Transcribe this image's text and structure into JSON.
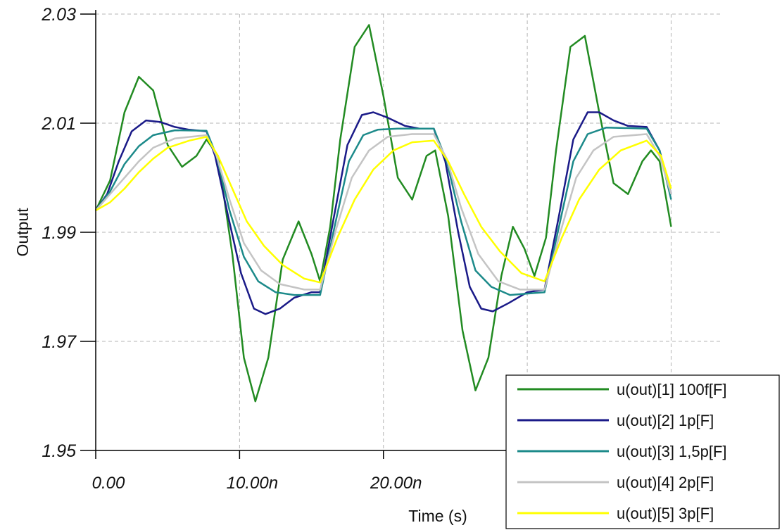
{
  "chart_data": {
    "type": "line",
    "xlabel": "Time (s)",
    "ylabel": "Output",
    "xlim": [
      0,
      43.5
    ],
    "ylim": [
      1.95,
      2.03
    ],
    "x_unit": "ns",
    "x_ticks": [
      0,
      10,
      20,
      30,
      40
    ],
    "x_tick_labels": [
      "0.00",
      "10.00n",
      "20.00n",
      "",
      ""
    ],
    "y_ticks": [
      1.95,
      1.97,
      1.99,
      2.01,
      2.03
    ],
    "y_tick_labels": [
      "1.95",
      "1.97",
      "1.99",
      "2.01",
      "2.03"
    ],
    "grid": true,
    "legend_position": "bottom-right",
    "series": [
      {
        "name": "u(out)[1]  100f[F]",
        "color": "#228B22",
        "points": [
          [
            0,
            1.994
          ],
          [
            1,
            1.9995
          ],
          [
            2,
            2.012
          ],
          [
            3,
            2.0185
          ],
          [
            4,
            2.016
          ],
          [
            5,
            2.006
          ],
          [
            6,
            2.002
          ],
          [
            7,
            2.004
          ],
          [
            7.7,
            2.007
          ],
          [
            8.5,
            2.004
          ],
          [
            9.5,
            1.986
          ],
          [
            10.3,
            1.967
          ],
          [
            11.1,
            1.959
          ],
          [
            12,
            1.967
          ],
          [
            13,
            1.985
          ],
          [
            14.1,
            1.992
          ],
          [
            15,
            1.986
          ],
          [
            15.6,
            1.981
          ],
          [
            16.3,
            1.991
          ],
          [
            17,
            2.007
          ],
          [
            18,
            2.024
          ],
          [
            19,
            2.028
          ],
          [
            20,
            2.015
          ],
          [
            21,
            2.0
          ],
          [
            22,
            1.996
          ],
          [
            23,
            2.004
          ],
          [
            23.6,
            2.005
          ],
          [
            24.5,
            1.993
          ],
          [
            25.5,
            1.972
          ],
          [
            26.4,
            1.961
          ],
          [
            27.3,
            1.967
          ],
          [
            28.2,
            1.982
          ],
          [
            29,
            1.991
          ],
          [
            29.8,
            1.987
          ],
          [
            30.5,
            1.982
          ],
          [
            31.3,
            1.989
          ],
          [
            32,
            2.005
          ],
          [
            33,
            2.024
          ],
          [
            34,
            2.026
          ],
          [
            35,
            2.012
          ],
          [
            36,
            1.999
          ],
          [
            37,
            1.997
          ],
          [
            38,
            2.003
          ],
          [
            38.6,
            2.005
          ],
          [
            39.2,
            2.003
          ],
          [
            40,
            1.991
          ]
        ]
      },
      {
        "name": "u(out)[2]  1p[F]",
        "color": "#1a1a88",
        "points": [
          [
            0,
            1.994
          ],
          [
            0.8,
            1.997
          ],
          [
            1.6,
            2.003
          ],
          [
            2.5,
            2.0085
          ],
          [
            3.5,
            2.0105
          ],
          [
            4.5,
            2.0102
          ],
          [
            5.5,
            2.0093
          ],
          [
            6.5,
            2.0088
          ],
          [
            7.7,
            2.0085
          ],
          [
            8.3,
            2.004
          ],
          [
            9.2,
            1.993
          ],
          [
            10.1,
            1.9825
          ],
          [
            11,
            1.976
          ],
          [
            11.8,
            1.975
          ],
          [
            12.8,
            1.976
          ],
          [
            13.8,
            1.978
          ],
          [
            15,
            1.979
          ],
          [
            15.6,
            1.979
          ],
          [
            16.5,
            1.992
          ],
          [
            17.5,
            2.006
          ],
          [
            18.5,
            2.0115
          ],
          [
            19.3,
            2.012
          ],
          [
            20.3,
            2.011
          ],
          [
            21.5,
            2.0095
          ],
          [
            22.5,
            2.009
          ],
          [
            23.5,
            2.009
          ],
          [
            24.3,
            2.003
          ],
          [
            25.2,
            1.99
          ],
          [
            26,
            1.98
          ],
          [
            26.8,
            1.976
          ],
          [
            27.6,
            1.9755
          ],
          [
            28.7,
            1.977
          ],
          [
            30,
            1.979
          ],
          [
            31.2,
            1.9795
          ],
          [
            32.2,
            1.993
          ],
          [
            33.2,
            2.007
          ],
          [
            34.2,
            2.012
          ],
          [
            35,
            2.012
          ],
          [
            36,
            2.0105
          ],
          [
            37,
            2.0095
          ],
          [
            38.3,
            2.0093
          ],
          [
            39.2,
            2.005
          ],
          [
            40,
            1.997
          ]
        ]
      },
      {
        "name": "u(out)[3]  1,5p[F]",
        "color": "#1c8a8a",
        "points": [
          [
            0,
            1.994
          ],
          [
            1,
            1.9975
          ],
          [
            2,
            2.0025
          ],
          [
            3,
            2.0058
          ],
          [
            4,
            2.0078
          ],
          [
            5.5,
            2.0087
          ],
          [
            7.7,
            2.0086
          ],
          [
            8.4,
            2.004
          ],
          [
            9.3,
            1.994
          ],
          [
            10.3,
            1.9855
          ],
          [
            11.3,
            1.981
          ],
          [
            12.5,
            1.979
          ],
          [
            13.8,
            1.9785
          ],
          [
            15.6,
            1.9785
          ],
          [
            16.6,
            1.991
          ],
          [
            17.6,
            2.003
          ],
          [
            18.6,
            2.0078
          ],
          [
            19.6,
            2.0088
          ],
          [
            21,
            2.009
          ],
          [
            23.5,
            2.009
          ],
          [
            24.4,
            2.003
          ],
          [
            25.4,
            1.992
          ],
          [
            26.4,
            1.983
          ],
          [
            27.5,
            1.98
          ],
          [
            28.8,
            1.9785
          ],
          [
            31.2,
            1.979
          ],
          [
            32.2,
            1.991
          ],
          [
            33.2,
            2.003
          ],
          [
            34.2,
            2.008
          ],
          [
            35.5,
            2.0092
          ],
          [
            38.3,
            2.009
          ],
          [
            39.2,
            2.005
          ],
          [
            40,
            1.996
          ]
        ]
      },
      {
        "name": "u(out)[4]  2p[F]",
        "color": "#c4c4c4",
        "points": [
          [
            0,
            1.994
          ],
          [
            1,
            1.997
          ],
          [
            2,
            2.0
          ],
          [
            3,
            2.003
          ],
          [
            4,
            2.0055
          ],
          [
            5.5,
            2.0072
          ],
          [
            7.7,
            2.0078
          ],
          [
            8.4,
            2.004
          ],
          [
            9.3,
            1.996
          ],
          [
            10.3,
            1.988
          ],
          [
            11.5,
            1.983
          ],
          [
            12.8,
            1.9805
          ],
          [
            14.5,
            1.9795
          ],
          [
            15.6,
            1.9795
          ],
          [
            16.7,
            1.9905
          ],
          [
            17.8,
            2.0
          ],
          [
            19,
            2.005
          ],
          [
            20.3,
            2.0075
          ],
          [
            22,
            2.008
          ],
          [
            23.5,
            2.008
          ],
          [
            24.4,
            2.0035
          ],
          [
            25.4,
            1.9945
          ],
          [
            26.6,
            1.986
          ],
          [
            28,
            1.981
          ],
          [
            29.5,
            1.9795
          ],
          [
            31.2,
            1.9795
          ],
          [
            32.3,
            1.99
          ],
          [
            33.4,
            2.0
          ],
          [
            34.6,
            2.005
          ],
          [
            36,
            2.0075
          ],
          [
            38.3,
            2.008
          ],
          [
            39.2,
            2.004
          ],
          [
            40,
            1.997
          ]
        ]
      },
      {
        "name": "u(out)[5]  3p[F]",
        "color": "#ffff00",
        "points": [
          [
            0,
            1.994
          ],
          [
            1,
            1.9955
          ],
          [
            2,
            1.998
          ],
          [
            3,
            2.001
          ],
          [
            4,
            2.0035
          ],
          [
            5,
            2.0055
          ],
          [
            6.5,
            2.0068
          ],
          [
            7.7,
            2.0075
          ],
          [
            8.5,
            2.004
          ],
          [
            9.5,
            1.998
          ],
          [
            10.5,
            1.992
          ],
          [
            11.7,
            1.9875
          ],
          [
            13,
            1.984
          ],
          [
            14.5,
            1.9815
          ],
          [
            15.6,
            1.9808
          ],
          [
            16.8,
            1.989
          ],
          [
            18,
            1.996
          ],
          [
            19.3,
            2.0015
          ],
          [
            20.7,
            2.005
          ],
          [
            22,
            2.0065
          ],
          [
            23.5,
            2.0068
          ],
          [
            24.5,
            2.003
          ],
          [
            25.6,
            1.997
          ],
          [
            26.8,
            1.991
          ],
          [
            28.1,
            1.9865
          ],
          [
            29.6,
            1.9825
          ],
          [
            31.2,
            1.981
          ],
          [
            32.4,
            1.989
          ],
          [
            33.6,
            1.996
          ],
          [
            35,
            2.0015
          ],
          [
            36.5,
            2.005
          ],
          [
            38.3,
            2.0068
          ],
          [
            39.3,
            2.004
          ],
          [
            40,
            1.998
          ]
        ]
      }
    ]
  }
}
